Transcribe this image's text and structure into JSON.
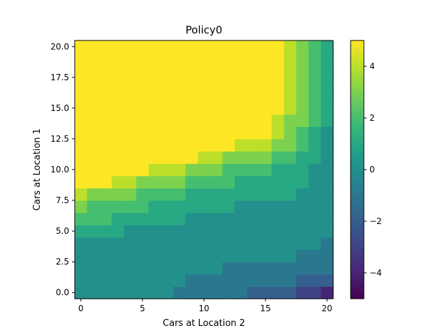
{
  "chart_data": {
    "type": "heatmap",
    "title": "Policy0",
    "xlabel": "Cars at Location 2",
    "ylabel": "Cars at Location 1",
    "x_range": [
      0,
      20
    ],
    "y_range": [
      0,
      20
    ],
    "x_ticks": [
      "0",
      "5",
      "10",
      "15",
      "20"
    ],
    "y_ticks": [
      "0.0",
      "2.5",
      "5.0",
      "7.5",
      "10.0",
      "12.5",
      "15.0",
      "17.5",
      "20.0"
    ],
    "colormap": "viridis",
    "color_range": [
      -5,
      5
    ],
    "colorbar_ticks": [
      "−4",
      "−2",
      "0",
      "2",
      "4"
    ],
    "grid": false,
    "note_rows": "z[row] where row index = Cars at Location 1 (0..20), column index = Cars at Location 2 (0..20)",
    "z": [
      [
        0,
        0,
        0,
        0,
        0,
        0,
        0,
        0,
        -1,
        -1,
        -1,
        -1,
        -1,
        -1,
        -2,
        -2,
        -2,
        -2,
        -3,
        -3,
        -4
      ],
      [
        0,
        0,
        0,
        0,
        0,
        0,
        0,
        0,
        0,
        -1,
        -1,
        -1,
        -1,
        -1,
        -1,
        -1,
        -1,
        -1,
        -2,
        -2,
        -2
      ],
      [
        0,
        0,
        0,
        0,
        0,
        0,
        0,
        0,
        0,
        0,
        0,
        0,
        -1,
        -1,
        -1,
        -1,
        -1,
        -1,
        -1,
        -1,
        -1
      ],
      [
        0,
        0,
        0,
        0,
        0,
        0,
        0,
        0,
        0,
        0,
        0,
        0,
        0,
        0,
        0,
        0,
        0,
        0,
        -1,
        -1,
        -1
      ],
      [
        0,
        0,
        0,
        0,
        0,
        0,
        0,
        0,
        0,
        0,
        0,
        0,
        0,
        0,
        0,
        0,
        0,
        0,
        0,
        0,
        -1
      ],
      [
        1,
        1,
        1,
        1,
        0,
        0,
        0,
        0,
        0,
        0,
        0,
        0,
        0,
        0,
        0,
        0,
        0,
        0,
        0,
        0,
        0
      ],
      [
        2,
        2,
        2,
        1,
        1,
        1,
        1,
        1,
        1,
        0,
        0,
        0,
        0,
        0,
        0,
        0,
        0,
        0,
        0,
        0,
        0
      ],
      [
        3,
        2,
        2,
        2,
        2,
        2,
        1,
        1,
        1,
        1,
        1,
        1,
        1,
        0,
        0,
        0,
        0,
        0,
        0,
        0,
        0
      ],
      [
        4,
        3,
        3,
        3,
        3,
        2,
        2,
        2,
        2,
        1,
        1,
        1,
        1,
        1,
        1,
        1,
        1,
        1,
        0,
        0,
        0
      ],
      [
        5,
        5,
        5,
        4,
        4,
        3,
        3,
        3,
        3,
        2,
        2,
        2,
        2,
        1,
        1,
        1,
        1,
        1,
        1,
        0,
        0
      ],
      [
        5,
        5,
        5,
        5,
        5,
        5,
        4,
        4,
        4,
        3,
        3,
        3,
        2,
        2,
        2,
        2,
        1,
        1,
        1,
        0,
        0
      ],
      [
        5,
        5,
        5,
        5,
        5,
        5,
        5,
        5,
        5,
        5,
        4,
        4,
        3,
        3,
        3,
        3,
        2,
        2,
        1,
        1,
        0
      ],
      [
        5,
        5,
        5,
        5,
        5,
        5,
        5,
        5,
        5,
        5,
        5,
        5,
        5,
        4,
        4,
        4,
        3,
        3,
        2,
        1,
        0
      ],
      [
        5,
        5,
        5,
        5,
        5,
        5,
        5,
        5,
        5,
        5,
        5,
        5,
        5,
        5,
        5,
        5,
        4,
        3,
        2,
        1,
        0
      ],
      [
        5,
        5,
        5,
        5,
        5,
        5,
        5,
        5,
        5,
        5,
        5,
        5,
        5,
        5,
        5,
        5,
        4,
        3,
        3,
        2,
        1
      ],
      [
        5,
        5,
        5,
        5,
        5,
        5,
        5,
        5,
        5,
        5,
        5,
        5,
        5,
        5,
        5,
        5,
        5,
        4,
        3,
        2,
        1
      ],
      [
        5,
        5,
        5,
        5,
        5,
        5,
        5,
        5,
        5,
        5,
        5,
        5,
        5,
        5,
        5,
        5,
        5,
        4,
        3,
        2,
        1
      ],
      [
        5,
        5,
        5,
        5,
        5,
        5,
        5,
        5,
        5,
        5,
        5,
        5,
        5,
        5,
        5,
        5,
        5,
        4,
        3,
        2,
        1
      ],
      [
        5,
        5,
        5,
        5,
        5,
        5,
        5,
        5,
        5,
        5,
        5,
        5,
        5,
        5,
        5,
        5,
        5,
        4,
        3,
        2,
        1
      ],
      [
        5,
        5,
        5,
        5,
        5,
        5,
        5,
        5,
        5,
        5,
        5,
        5,
        5,
        5,
        5,
        5,
        5,
        4,
        3,
        2,
        1
      ],
      [
        5,
        5,
        5,
        5,
        5,
        5,
        5,
        5,
        5,
        5,
        5,
        5,
        5,
        5,
        5,
        5,
        5,
        4,
        3,
        2,
        1
      ]
    ]
  }
}
